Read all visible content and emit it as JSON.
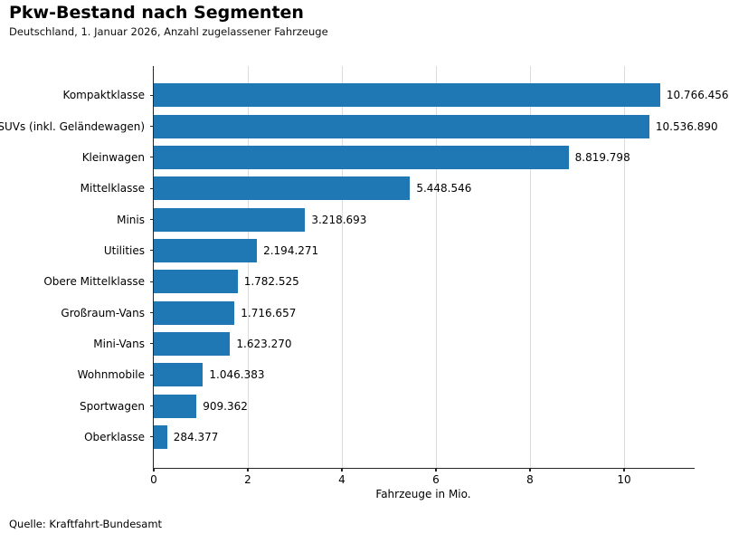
{
  "chart_data": {
    "type": "bar",
    "orientation": "horizontal",
    "title": "Pkw-Bestand nach Segmenten",
    "subtitle": "Deutschland, 1. Januar 2026, Anzahl zugelassener Fahrzeuge",
    "categories": [
      "Kompaktklasse",
      "SUVs (inkl. Geländewagen)",
      "Kleinwagen",
      "Mittelklasse",
      "Minis",
      "Utilities",
      "Obere Mittelklasse",
      "Großraum-Vans",
      "Mini-Vans",
      "Wohnmobile",
      "Sportwagen",
      "Oberklasse"
    ],
    "values": [
      10766456,
      10536890,
      8819798,
      5448546,
      3218693,
      2194271,
      1782525,
      1716657,
      1623270,
      1046383,
      909362,
      284377
    ],
    "value_labels": [
      "10.766.456",
      "10.536.890",
      "8.819.798",
      "5.448.546",
      "3.218.693",
      "2.194.271",
      "1.782.525",
      "1.716.657",
      "1.623.270",
      "1.046.383",
      "909.362",
      "284.377"
    ],
    "xlabel": "Fahrzeuge in Mio.",
    "x_ticks": [
      0,
      2,
      4,
      6,
      8,
      10
    ],
    "x_tick_labels": [
      "0",
      "2",
      "4",
      "6",
      "8",
      "10"
    ],
    "xlim": [
      0,
      11.5
    ],
    "unit_divisor": 1000000,
    "grid": "vertical",
    "legend": "none",
    "source": "Quelle: Kraftfahrt-Bundesamt"
  },
  "colors": {
    "bar": "#1f77b4",
    "grid": "#dcdcdc",
    "axis": "#262626",
    "text": "#000000",
    "background": "#ffffff"
  }
}
